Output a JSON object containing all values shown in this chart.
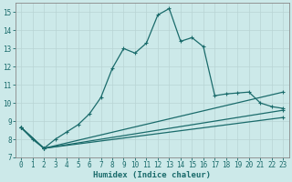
{
  "title": "",
  "xlabel": "Humidex (Indice chaleur)",
  "ylabel": "",
  "background_color": "#cce9e9",
  "grid_color": "#dde8e8",
  "line_color": "#1a6b6b",
  "ylim": [
    7,
    15.5
  ],
  "xlim": [
    -0.5,
    23.5
  ],
  "yticks": [
    7,
    8,
    9,
    10,
    11,
    12,
    13,
    14,
    15
  ],
  "xticks": [
    0,
    1,
    2,
    3,
    4,
    5,
    6,
    7,
    8,
    9,
    10,
    11,
    12,
    13,
    14,
    15,
    16,
    17,
    18,
    19,
    20,
    21,
    22,
    23
  ],
  "line1_x": [
    0,
    1,
    2,
    3,
    4,
    5,
    6,
    7,
    8,
    9,
    10,
    11,
    12,
    13,
    14,
    15,
    16,
    17,
    18,
    19,
    20,
    21,
    22,
    23
  ],
  "line1_y": [
    8.65,
    8.0,
    7.5,
    8.0,
    8.4,
    8.8,
    9.4,
    10.3,
    11.9,
    13.0,
    12.75,
    13.3,
    14.85,
    15.2,
    13.4,
    13.6,
    13.1,
    10.4,
    10.5,
    10.55,
    10.6,
    10.0,
    9.8,
    9.7
  ],
  "line2_x": [
    0,
    2,
    23
  ],
  "line2_y": [
    8.65,
    7.5,
    10.6
  ],
  "line3_x": [
    0,
    2,
    23
  ],
  "line3_y": [
    8.65,
    7.5,
    9.6
  ],
  "line4_x": [
    0,
    2,
    23
  ],
  "line4_y": [
    8.65,
    7.5,
    9.2
  ]
}
